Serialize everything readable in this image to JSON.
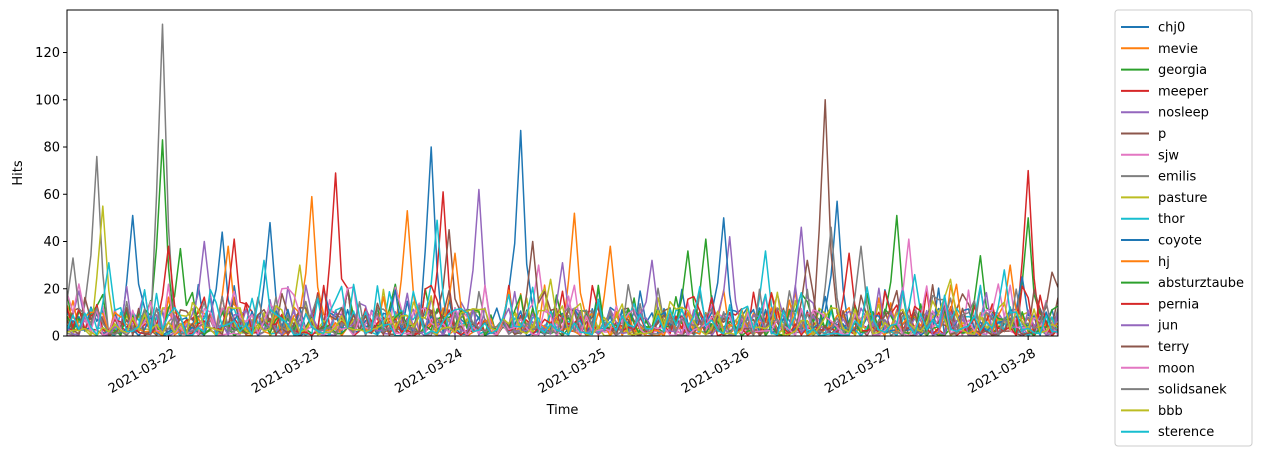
{
  "chart_data": {
    "type": "line",
    "title": "",
    "xlabel": "Time",
    "ylabel": "Hits",
    "xlim": [
      "2021-03-21 07:00",
      "2021-03-28 05:00"
    ],
    "ylim": [
      0,
      138
    ],
    "x_ticks": [
      "2021-03-22",
      "2021-03-23",
      "2021-03-24",
      "2021-03-25",
      "2021-03-26",
      "2021-03-27",
      "2021-03-28"
    ],
    "y_ticks": [
      0,
      20,
      40,
      60,
      80,
      100,
      120
    ],
    "legend_position": "outside-right",
    "grid": false,
    "series": [
      {
        "name": "chj0",
        "color": "#1f77b4",
        "peaks": [
          [
            "2021-03-21 18:00",
            51
          ],
          [
            "2021-03-22 17:00",
            48
          ],
          [
            "2021-03-23 20:00",
            80
          ],
          [
            "2021-03-24 11:00",
            87
          ],
          [
            "2021-03-26 16:00",
            57
          ]
        ]
      },
      {
        "name": "mevie",
        "color": "#ff7f0e",
        "peaks": [
          [
            "2021-03-23 00:00",
            59
          ],
          [
            "2021-03-23 16:00",
            53
          ],
          [
            "2021-03-24 20:00",
            52
          ],
          [
            "2021-03-25 02:00",
            38
          ]
        ]
      },
      {
        "name": "georgia",
        "color": "#2ca02c",
        "peaks": [
          [
            "2021-03-21 23:00",
            83
          ],
          [
            "2021-03-25 18:00",
            41
          ],
          [
            "2021-03-27 02:00",
            51
          ],
          [
            "2021-03-28 00:00",
            50
          ]
        ]
      },
      {
        "name": "meeper",
        "color": "#d62728",
        "peaks": [
          [
            "2021-03-23 04:00",
            69
          ],
          [
            "2021-03-23 22:00",
            61
          ],
          [
            "2021-03-28 00:00",
            70
          ]
        ]
      },
      {
        "name": "nosleep",
        "color": "#9467bd",
        "peaks": [
          [
            "2021-03-24 04:00",
            62
          ],
          [
            "2021-03-26 10:00",
            46
          ],
          [
            "2021-03-25 22:00",
            42
          ]
        ]
      },
      {
        "name": "p",
        "color": "#8c564b",
        "peaks": [
          [
            "2021-03-26 14:00",
            100
          ],
          [
            "2021-03-23 23:00",
            45
          ]
        ]
      },
      {
        "name": "sjw",
        "color": "#e377c2",
        "peaks": [
          [
            "2021-03-27 04:00",
            41
          ],
          [
            "2021-03-24 14:00",
            30
          ]
        ]
      },
      {
        "name": "emilis",
        "color": "#7f7f7f",
        "peaks": [
          [
            "2021-03-21 23:00",
            132
          ],
          [
            "2021-03-21 12:00",
            76
          ],
          [
            "2021-03-26 15:00",
            46
          ]
        ]
      },
      {
        "name": "pasture",
        "color": "#bcbd22",
        "peaks": [
          [
            "2021-03-21 13:00",
            55
          ],
          [
            "2021-03-22 22:00",
            30
          ]
        ]
      },
      {
        "name": "thor",
        "color": "#17becf",
        "peaks": [
          [
            "2021-03-23 21:00",
            49
          ],
          [
            "2021-03-26 04:00",
            36
          ],
          [
            "2021-03-27 05:00",
            26
          ]
        ]
      },
      {
        "name": "coyote",
        "color": "#1f77b4",
        "peaks": [
          [
            "2021-03-22 09:00",
            44
          ],
          [
            "2021-03-25 21:00",
            50
          ],
          [
            "2021-03-27 23:00",
            25
          ]
        ]
      },
      {
        "name": "hj",
        "color": "#ff7f0e",
        "peaks": [
          [
            "2021-03-22 10:00",
            38
          ],
          [
            "2021-03-24 00:00",
            35
          ],
          [
            "2021-03-27 21:00",
            30
          ]
        ]
      },
      {
        "name": "absturztaube",
        "color": "#2ca02c",
        "peaks": [
          [
            "2021-03-22 02:00",
            37
          ],
          [
            "2021-03-25 15:00",
            36
          ],
          [
            "2021-03-27 16:00",
            34
          ]
        ]
      },
      {
        "name": "pernia",
        "color": "#d62728",
        "peaks": [
          [
            "2021-03-22 00:00",
            38
          ],
          [
            "2021-03-22 11:00",
            41
          ],
          [
            "2021-03-26 18:00",
            35
          ]
        ]
      },
      {
        "name": "jun",
        "color": "#9467bd",
        "peaks": [
          [
            "2021-03-22 06:00",
            40
          ],
          [
            "2021-03-24 18:00",
            31
          ],
          [
            "2021-03-25 09:00",
            32
          ]
        ]
      },
      {
        "name": "terry",
        "color": "#8c564b",
        "peaks": [
          [
            "2021-03-24 13:00",
            40
          ],
          [
            "2021-03-26 11:00",
            32
          ],
          [
            "2021-03-28 04:00",
            27
          ]
        ]
      },
      {
        "name": "moon",
        "color": "#e377c2",
        "peaks": [
          [
            "2021-03-21 09:00",
            22
          ],
          [
            "2021-03-22 19:00",
            20
          ],
          [
            "2021-03-27 19:00",
            22
          ]
        ]
      },
      {
        "name": "solidsanek",
        "color": "#7f7f7f",
        "peaks": [
          [
            "2021-03-21 08:00",
            33
          ],
          [
            "2021-03-26 20:00",
            38
          ]
        ]
      },
      {
        "name": "bbb",
        "color": "#bcbd22",
        "peaks": [
          [
            "2021-03-24 16:00",
            24
          ],
          [
            "2021-03-27 11:00",
            24
          ]
        ]
      },
      {
        "name": "sterence",
        "color": "#17becf",
        "peaks": [
          [
            "2021-03-21 14:00",
            31
          ],
          [
            "2021-03-22 16:00",
            32
          ],
          [
            "2021-03-27 20:00",
            28
          ]
        ]
      }
    ]
  }
}
